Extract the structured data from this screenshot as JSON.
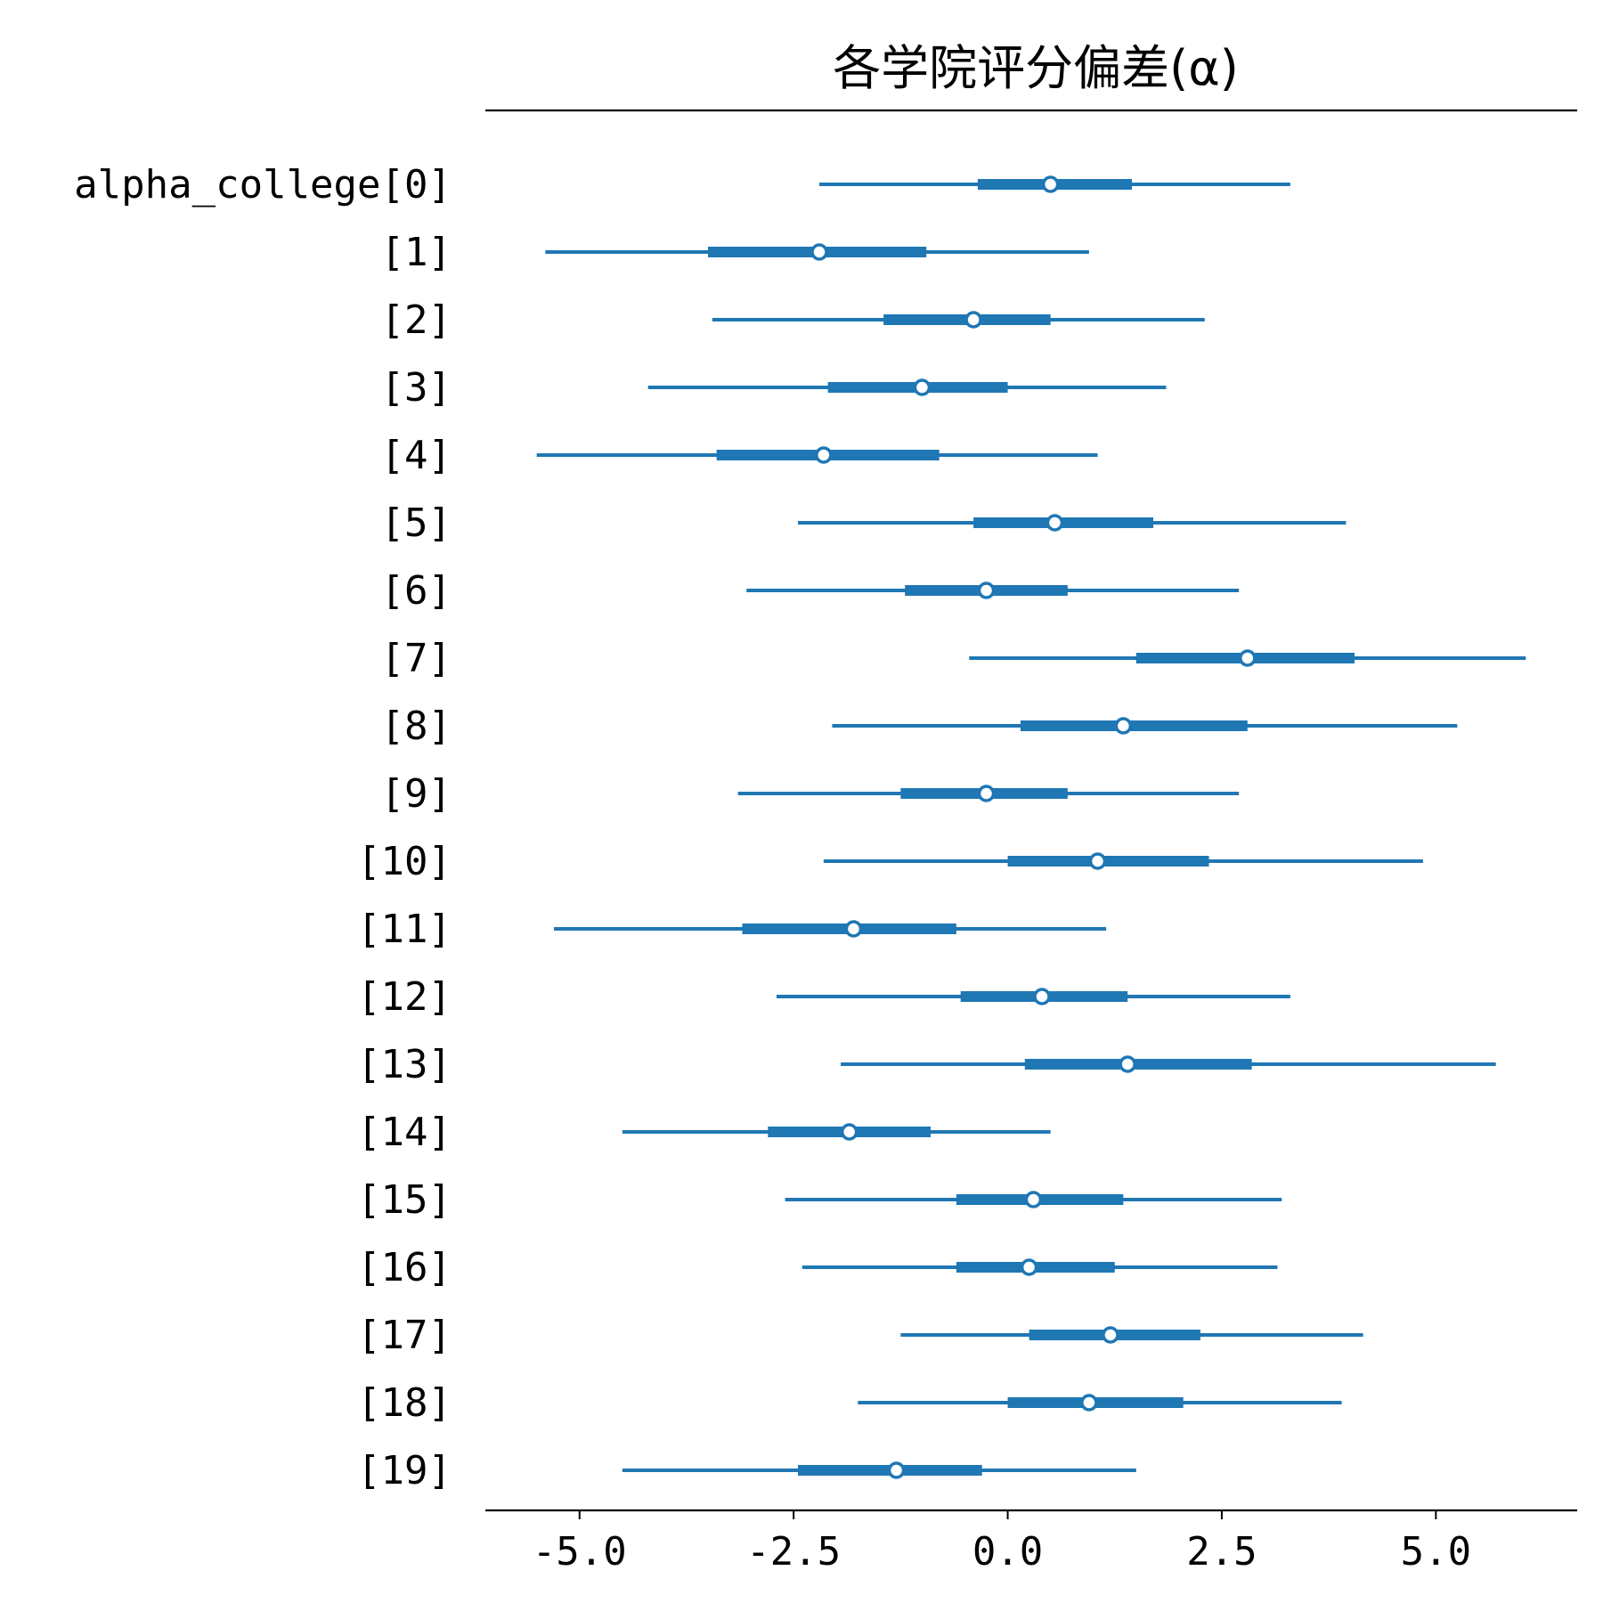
{
  "chart_data": {
    "type": "forest",
    "title": "各学院评分偏差(α)",
    "xlabel": "",
    "ylabel": "",
    "xlim": [
      -6.1,
      6.65
    ],
    "xticks": [
      -5.0,
      -2.5,
      0.0,
      2.5,
      5.0
    ],
    "xtick_labels": [
      "-5.0",
      "-2.5",
      "0.0",
      "2.5",
      "5.0"
    ],
    "color": "#1f77b4",
    "rows": [
      {
        "label": "alpha_college[0]",
        "median": 0.5,
        "inner": [
          -0.35,
          1.45
        ],
        "outer": [
          -2.2,
          3.3
        ]
      },
      {
        "label": "[1]",
        "median": -2.2,
        "inner": [
          -3.5,
          -0.95
        ],
        "outer": [
          -5.4,
          0.95
        ]
      },
      {
        "label": "[2]",
        "median": -0.4,
        "inner": [
          -1.45,
          0.5
        ],
        "outer": [
          -3.45,
          2.3
        ]
      },
      {
        "label": "[3]",
        "median": -1.0,
        "inner": [
          -2.1,
          0.0
        ],
        "outer": [
          -4.2,
          1.85
        ]
      },
      {
        "label": "[4]",
        "median": -2.15,
        "inner": [
          -3.4,
          -0.8
        ],
        "outer": [
          -5.5,
          1.05
        ]
      },
      {
        "label": "[5]",
        "median": 0.55,
        "inner": [
          -0.4,
          1.7
        ],
        "outer": [
          -2.45,
          3.95
        ]
      },
      {
        "label": "[6]",
        "median": -0.25,
        "inner": [
          -1.2,
          0.7
        ],
        "outer": [
          -3.05,
          2.7
        ]
      },
      {
        "label": "[7]",
        "median": 2.8,
        "inner": [
          1.5,
          4.05
        ],
        "outer": [
          -0.45,
          6.05
        ]
      },
      {
        "label": "[8]",
        "median": 1.35,
        "inner": [
          0.15,
          2.8
        ],
        "outer": [
          -2.05,
          5.25
        ]
      },
      {
        "label": "[9]",
        "median": -0.25,
        "inner": [
          -1.25,
          0.7
        ],
        "outer": [
          -3.15,
          2.7
        ]
      },
      {
        "label": "[10]",
        "median": 1.05,
        "inner": [
          0.0,
          2.35
        ],
        "outer": [
          -2.15,
          4.85
        ]
      },
      {
        "label": "[11]",
        "median": -1.8,
        "inner": [
          -3.1,
          -0.6
        ],
        "outer": [
          -5.3,
          1.15
        ]
      },
      {
        "label": "[12]",
        "median": 0.4,
        "inner": [
          -0.55,
          1.4
        ],
        "outer": [
          -2.7,
          3.3
        ]
      },
      {
        "label": "[13]",
        "median": 1.4,
        "inner": [
          0.2,
          2.85
        ],
        "outer": [
          -1.95,
          5.7
        ]
      },
      {
        "label": "[14]",
        "median": -1.85,
        "inner": [
          -2.8,
          -0.9
        ],
        "outer": [
          -4.5,
          0.5
        ]
      },
      {
        "label": "[15]",
        "median": 0.3,
        "inner": [
          -0.6,
          1.35
        ],
        "outer": [
          -2.6,
          3.2
        ]
      },
      {
        "label": "[16]",
        "median": 0.25,
        "inner": [
          -0.6,
          1.25
        ],
        "outer": [
          -2.4,
          3.15
        ]
      },
      {
        "label": "[17]",
        "median": 1.2,
        "inner": [
          0.25,
          2.25
        ],
        "outer": [
          -1.25,
          4.15
        ]
      },
      {
        "label": "[18]",
        "median": 0.95,
        "inner": [
          0.0,
          2.05
        ],
        "outer": [
          -1.75,
          3.9
        ]
      },
      {
        "label": "[19]",
        "median": -1.3,
        "inner": [
          -2.45,
          -0.3
        ],
        "outer": [
          -4.5,
          1.5
        ]
      }
    ]
  }
}
